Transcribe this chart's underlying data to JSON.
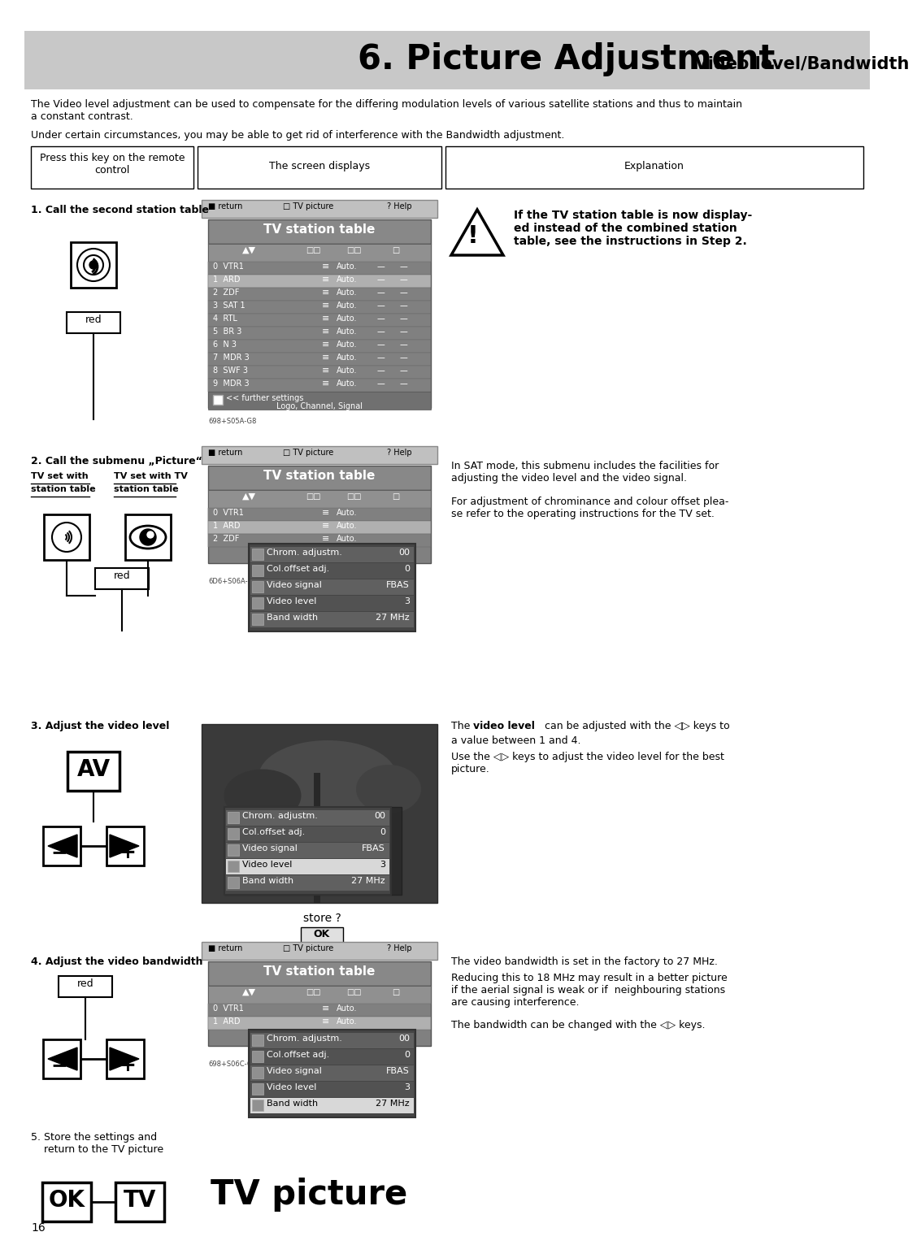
{
  "title_main": "6. Picture Adjustment",
  "title_sub": "Video level/Bandwidth",
  "title_bg": "#c8c8c8",
  "page_bg": "#ffffff",
  "page_number": "16",
  "intro_text1": "The Video level adjustment can be used to compensate for the differing modulation levels of various satellite stations and thus to maintain\na constant contrast.",
  "intro_text2": "Under certain circumstances, you may be able to get rid of interference with the Bandwidth adjustment.",
  "col1_header": "Press this key on the remote\ncontrol",
  "col2_header": "The screen displays",
  "col3_header": "Explanation",
  "step1_label": "1. Call the second station table",
  "step3_label": "3. Adjust the video level",
  "step4_label": "4. Adjust the video bandwidth",
  "step5_label": "5. Store the settings and\n    return to the TV picture",
  "warning_text": "If the TV station table is now display-\ned instead of the combined station\ntable, see the instructions in Step 2.",
  "step2_explain1": "In SAT mode, this submenu includes the facilities for\nadjusting the video level and the video signal.",
  "step2_explain2": "For adjustment of chrominance and colour offset plea-\nse refer to the operating instructions for the TV set.",
  "step3_explain2": "Use the ◁▷ keys to adjust the video level for the best\npicture.",
  "step4_explain1": "The video bandwidth is set in the factory to 27 MHz.",
  "step4_explain2": "Reducing this to 18 MHz may result in a better picture\nif the aerial signal is weak or if  neighbouring stations\nare causing interference.",
  "step4_explain3": "The bandwidth can be changed with the ◁▷ keys.",
  "tv_table_title": "TV station table",
  "station_list": [
    "0  VTR1",
    "1  ARD",
    "2  ZDF",
    "3  SAT 1",
    "4  RTL",
    "5  BR 3",
    "6  N 3",
    "7  MDR 3",
    "8  SWF 3",
    "9  MDR 3"
  ],
  "station_auto": [
    "Auto.",
    "Auto.",
    "Auto.",
    "Auto.",
    "Auto.",
    "Auto.",
    "Auto.",
    "Auto.",
    "Auto.",
    "Auto."
  ],
  "further_settings": "<< further settings",
  "logo_channel": "Logo, Channel, Signal",
  "menu_items": [
    "Chrom. adjustm.",
    "Col.offset adj.",
    "Video signal",
    "Video level",
    "Band width"
  ],
  "menu_values": [
    "00",
    "0",
    "FBAS",
    "3",
    "27 MHz"
  ],
  "menu_highlight": 3,
  "menu_highlight_bw": 4,
  "code_label1": "698+S05A-G8",
  "code_label2": "6D6+S06A-G8",
  "code_label3": "698+S06C-G8",
  "store_text": "store ?",
  "tv_picture_label": "TV picture",
  "sub3_bg": [
    0.16,
    0.16,
    0.16,
    0.92
  ]
}
